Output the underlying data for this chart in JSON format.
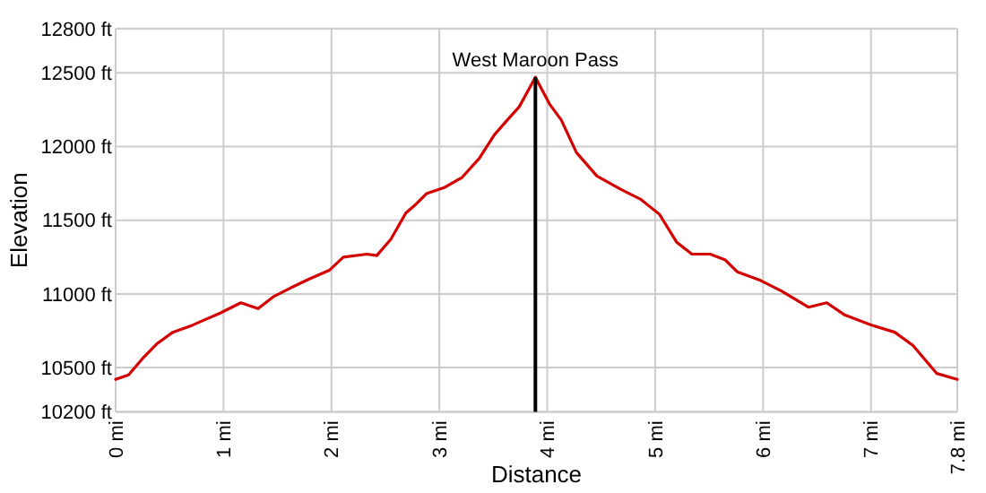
{
  "chart_data": {
    "type": "line",
    "xlabel": "Distance",
    "ylabel": "Elevation",
    "x": [
      0,
      0.12,
      0.26,
      0.38,
      0.53,
      0.72,
      0.78,
      0.97,
      1.16,
      1.32,
      1.46,
      1.62,
      1.79,
      1.98,
      2.11,
      2.33,
      2.42,
      2.55,
      2.69,
      2.77,
      2.88,
      3.04,
      3.21,
      3.37,
      3.51,
      3.63,
      3.74,
      3.89,
      4.02,
      4.13,
      4.27,
      4.46,
      4.68,
      4.87,
      5.04,
      5.2,
      5.34,
      5.51,
      5.65,
      5.76,
      5.98,
      6.17,
      6.42,
      6.59,
      6.75,
      7.0,
      7.22,
      7.39,
      7.61,
      7.8
    ],
    "series": [
      {
        "color": "#d40000",
        "values": [
          10420,
          10450,
          10570,
          10660,
          10740,
          10790,
          10810,
          10870,
          10940,
          10900,
          10980,
          11040,
          11100,
          11160,
          11250,
          11270,
          11260,
          11370,
          11550,
          11600,
          11680,
          11720,
          11790,
          11920,
          12080,
          12180,
          12270,
          12470,
          12290,
          12180,
          11960,
          11800,
          11710,
          11640,
          11540,
          11350,
          11270,
          11270,
          11230,
          11150,
          11090,
          11020,
          10910,
          10940,
          10860,
          10790,
          10740,
          10650,
          10460,
          10420
        ]
      }
    ],
    "xlim": [
      0,
      7.8
    ],
    "xticks": [
      {
        "value": 0,
        "label": "0 mi"
      },
      {
        "value": 1,
        "label": "1 mi"
      },
      {
        "value": 2,
        "label": "2 mi"
      },
      {
        "value": 3,
        "label": "3 mi"
      },
      {
        "value": 4,
        "label": "4 mi"
      },
      {
        "value": 5,
        "label": "5 mi"
      },
      {
        "value": 6,
        "label": "6 mi"
      },
      {
        "value": 7,
        "label": "7 mi"
      },
      {
        "value": 7.8,
        "label": "7.8 mi"
      }
    ],
    "ylim": [
      10200,
      12800
    ],
    "yticks": [
      {
        "value": 10200,
        "label": "10200 ft"
      },
      {
        "value": 10500,
        "label": "10500 ft"
      },
      {
        "value": 11000,
        "label": "11000 ft"
      },
      {
        "value": 11500,
        "label": "11500 ft"
      },
      {
        "value": 12000,
        "label": "12000 ft"
      },
      {
        "value": 12500,
        "label": "12500 ft"
      },
      {
        "value": 12800,
        "label": "12800 ft"
      }
    ],
    "grid": true,
    "marker": "none",
    "line_style": "solid",
    "ref_lines": [
      {
        "axis": "x",
        "value": 3.89,
        "label": "West Maroon Pass",
        "color": "#000000"
      }
    ]
  }
}
